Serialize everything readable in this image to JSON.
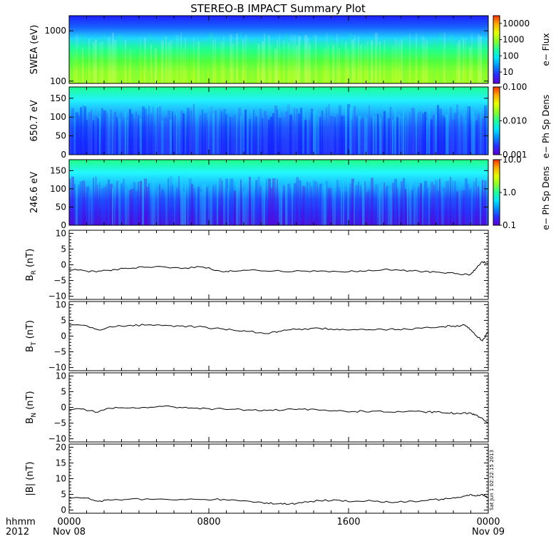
{
  "title": "STEREO-B IMPACT Summary Plot",
  "timestamp": "Sat Jun 1 02:22:15 2013",
  "x_axis": {
    "row1_label": "hhmm",
    "row2_label": "2012",
    "ticks": [
      {
        "t": 0,
        "label": "0000",
        "sub": "Nov 08"
      },
      {
        "t": 480,
        "label": "0800",
        "sub": ""
      },
      {
        "t": 960,
        "label": "1600",
        "sub": ""
      },
      {
        "t": 1440,
        "label": "0000",
        "sub": "Nov 09"
      }
    ]
  },
  "colors": {
    "spectrogram_scale": [
      "#5a00d8",
      "#2a2cff",
      "#008cff",
      "#00e6ff",
      "#1fff9a",
      "#8cff28",
      "#e6ff00",
      "#ffae00",
      "#ff3000"
    ]
  },
  "chart_data": [
    {
      "type": "heatmap",
      "ylabel": "SWEA (eV)",
      "ytick_labels": [
        "1000",
        "100"
      ],
      "ylim": [
        90,
        2000
      ],
      "yscale": "log",
      "colorbar": {
        "label": "e− Flux",
        "ticks": [
          "10000",
          "1000",
          "100",
          "10"
        ],
        "range": [
          2,
          30000
        ],
        "scale": "log"
      }
    },
    {
      "type": "heatmap",
      "ylabel": "650.7 eV",
      "ytick_labels": [
        "150",
        "100",
        "50",
        "0"
      ],
      "ylim": [
        0,
        180
      ],
      "colorbar": {
        "label": "e− Ph Sp Dens",
        "ticks": [
          "0.100",
          "0.010",
          "0.001"
        ],
        "range": [
          0.001,
          0.1
        ],
        "scale": "log"
      }
    },
    {
      "type": "heatmap",
      "ylabel": "246.6 eV",
      "ytick_labels": [
        "150",
        "100",
        "50",
        "0"
      ],
      "ylim": [
        0,
        180
      ],
      "colorbar": {
        "label": "e− Ph Sp Dens",
        "ticks": [
          "10.0",
          "1.0",
          "0.1"
        ],
        "range": [
          0.1,
          10
        ],
        "scale": "log"
      }
    },
    {
      "type": "line",
      "ylabel_main": "B",
      "ylabel_sub": "R",
      "ylabel_unit": "(nT)",
      "ylim": [
        -11,
        11
      ],
      "ytick_labels": [
        "10",
        "5",
        "0",
        "−5",
        "−10"
      ],
      "series": [
        {
          "x": [
            0,
            60,
            110,
            160,
            200,
            260,
            320,
            400,
            460,
            520,
            560,
            620,
            700,
            800,
            880,
            960,
            1020,
            1080,
            1140,
            1200,
            1260,
            1300,
            1340,
            1380,
            1400,
            1420,
            1440
          ],
          "y": [
            -1.5,
            -2,
            -2,
            -1.5,
            -1.2,
            -0.8,
            -0.6,
            -1,
            -0.7,
            -2,
            -2,
            -1.7,
            -2,
            -2,
            -2,
            -2.2,
            -2,
            -1.5,
            -1.8,
            -2,
            -2.3,
            -2.5,
            -3,
            -3,
            -1,
            1,
            0.5
          ]
        }
      ]
    },
    {
      "type": "line",
      "ylabel_main": "B",
      "ylabel_sub": "T",
      "ylabel_unit": "(nT)",
      "ylim": [
        -11,
        11
      ],
      "ytick_labels": [
        "10",
        "5",
        "0",
        "−5",
        "−10"
      ],
      "series": [
        {
          "x": [
            0,
            60,
            100,
            140,
            200,
            260,
            320,
            380,
            440,
            500,
            560,
            620,
            680,
            720,
            760,
            800,
            860,
            920,
            980,
            1040,
            1100,
            1160,
            1220,
            1280,
            1320,
            1360,
            1380,
            1400,
            1420,
            1440
          ],
          "y": [
            3.5,
            3.3,
            2,
            3,
            3.3,
            3.5,
            3.3,
            3.2,
            3,
            2.5,
            2,
            1.5,
            0.8,
            1.5,
            2,
            2,
            2.5,
            2.2,
            2.1,
            2,
            2.2,
            2.2,
            2.7,
            3,
            3.2,
            3.5,
            2,
            0,
            -1.5,
            1.5
          ]
        }
      ]
    },
    {
      "type": "line",
      "ylabel_main": "B",
      "ylabel_sub": "N",
      "ylabel_unit": "(nT)",
      "ylim": [
        -11,
        11
      ],
      "ytick_labels": [
        "10",
        "5",
        "0",
        "−5",
        "−10"
      ],
      "series": [
        {
          "x": [
            0,
            40,
            100,
            140,
            200,
            260,
            320,
            380,
            440,
            500,
            560,
            620,
            680,
            740,
            800,
            860,
            920,
            980,
            1040,
            1100,
            1160,
            1220,
            1260,
            1300,
            1340,
            1380,
            1400,
            1420,
            1440
          ],
          "y": [
            -0.5,
            -0.5,
            -1.5,
            -0.3,
            -0.2,
            0,
            0.3,
            0,
            -0.2,
            -0.5,
            -0.6,
            -0.8,
            -1,
            -0.8,
            -0.6,
            -0.9,
            -1.1,
            -1.3,
            -1.2,
            -1.5,
            -1.3,
            -1.5,
            -1.5,
            -1.8,
            -2,
            -1.8,
            -2.5,
            -3.5,
            -5
          ]
        }
      ]
    },
    {
      "type": "line",
      "ylabel_main": "|B|",
      "ylabel_sub": "",
      "ylabel_unit": "(nT)",
      "ylim": [
        -1,
        21
      ],
      "ytick_labels": [
        "20",
        "15",
        "10",
        "5",
        "0"
      ],
      "series": [
        {
          "x": [
            0,
            60,
            100,
            140,
            200,
            300,
            400,
            500,
            560,
            620,
            680,
            720,
            760,
            800,
            860,
            920,
            980,
            1040,
            1100,
            1160,
            1220,
            1280,
            1320,
            1360,
            1380,
            1400,
            1420,
            1440
          ],
          "y": [
            3.8,
            3.8,
            2.8,
            3.2,
            3.4,
            3.5,
            3.3,
            3.4,
            3.3,
            2.8,
            2.3,
            2,
            2,
            2.3,
            3,
            3.2,
            2.8,
            2.9,
            2.5,
            2.6,
            3,
            3.5,
            4,
            4.5,
            5,
            4.5,
            5,
            4
          ]
        }
      ]
    }
  ]
}
